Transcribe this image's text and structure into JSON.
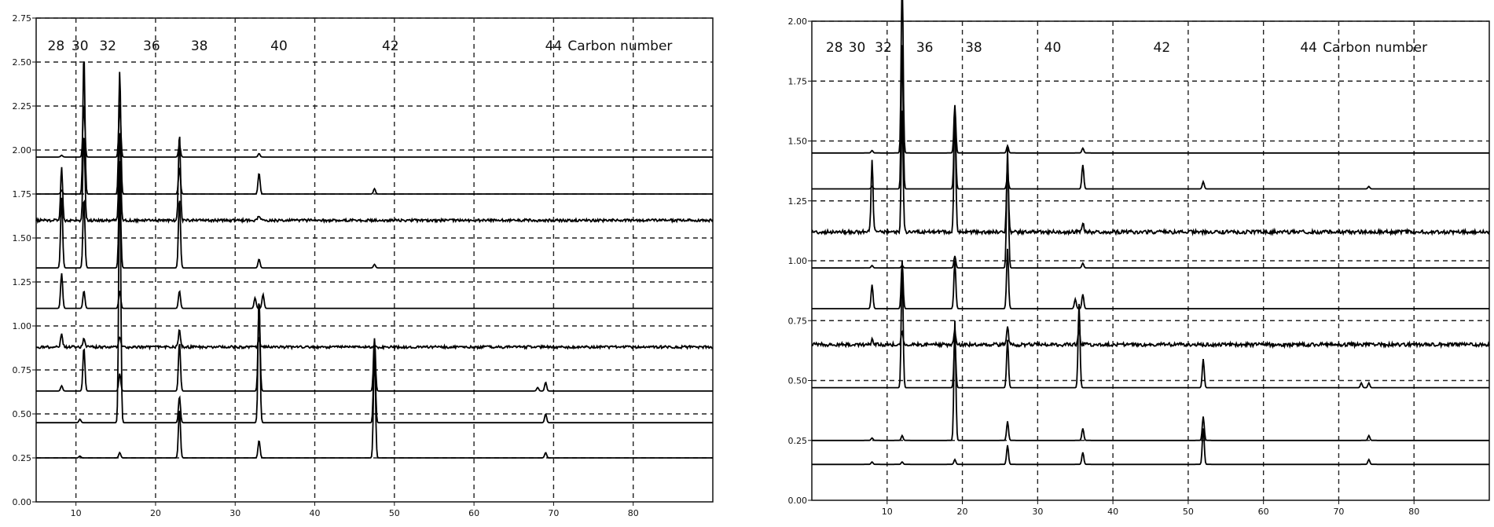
{
  "chart_data": [
    {
      "type": "line",
      "title": "",
      "xlabel": "",
      "ylabel": "",
      "xlim": [
        5,
        90
      ],
      "ylim": [
        0,
        2.75
      ],
      "xticks": [
        "10",
        "20",
        "30",
        "40",
        "50",
        "60",
        "70",
        "80"
      ],
      "yticks": [
        "0.00",
        "0.25",
        "0.50",
        "0.75",
        "1.00",
        "1.25",
        "1.50",
        "1.75",
        "2.00",
        "2.25",
        "2.50",
        "2.75"
      ],
      "grid": "dashed",
      "carbon_number_label": "Carbon number",
      "carbon_numbers": [
        {
          "label": "28",
          "x": 7.5
        },
        {
          "label": "30",
          "x": 10.5
        },
        {
          "label": "32",
          "x": 14.0
        },
        {
          "label": "36",
          "x": 19.5
        },
        {
          "label": "38",
          "x": 25.5
        },
        {
          "label": "40",
          "x": 35.5
        },
        {
          "label": "42",
          "x": 49.5
        },
        {
          "label": "44",
          "x": 70.0
        }
      ],
      "series": [
        {
          "baseline": 0.25,
          "peaks": [
            [
              10.5,
              0.01
            ],
            [
              15.5,
              0.03
            ],
            [
              23.0,
              0.28
            ],
            [
              33.0,
              0.1
            ],
            [
              47.5,
              0.6
            ],
            [
              69.0,
              0.03
            ]
          ]
        },
        {
          "baseline": 0.45,
          "peaks": [
            [
              10.5,
              0.02
            ],
            [
              15.5,
              1.5
            ],
            [
              23.0,
              0.15
            ],
            [
              33.0,
              0.72
            ],
            [
              47.5,
              0.45
            ],
            [
              69.0,
              0.05
            ]
          ]
        },
        {
          "baseline": 0.63,
          "peaks": [
            [
              8.2,
              0.03
            ],
            [
              11.0,
              0.25
            ],
            [
              15.5,
              0.1
            ],
            [
              23.0,
              0.28
            ],
            [
              33.0,
              0.5
            ],
            [
              47.5,
              0.3
            ],
            [
              68.0,
              0.02
            ],
            [
              69.0,
              0.05
            ]
          ]
        },
        {
          "baseline": 0.88,
          "peaks": [
            [
              8.2,
              0.08
            ],
            [
              11.0,
              0.05
            ],
            [
              15.5,
              0.06
            ],
            [
              23.0,
              0.1
            ],
            [
              33.0,
              0.05
            ]
          ],
          "noisy": true
        },
        {
          "baseline": 1.1,
          "peaks": [
            [
              8.2,
              0.2
            ],
            [
              11.0,
              0.1
            ],
            [
              15.5,
              0.1
            ],
            [
              23.0,
              0.1
            ],
            [
              32.5,
              0.06
            ],
            [
              33.5,
              0.08
            ]
          ]
        },
        {
          "baseline": 1.33,
          "peaks": [
            [
              8.2,
              0.4
            ],
            [
              11.0,
              0.4
            ],
            [
              15.5,
              0.5
            ],
            [
              23.0,
              0.4
            ],
            [
              33.0,
              0.05
            ],
            [
              47.5,
              0.02
            ]
          ]
        },
        {
          "baseline": 1.6,
          "peaks": [
            [
              8.2,
              0.3
            ],
            [
              11.0,
              0.5
            ],
            [
              15.5,
              0.5
            ],
            [
              23.0,
              0.5
            ],
            [
              33.0,
              0.03
            ]
          ],
          "noisy": true
        },
        {
          "baseline": 1.75,
          "peaks": [
            [
              8.2,
              0.02
            ],
            [
              11.0,
              0.8
            ],
            [
              15.5,
              0.7
            ],
            [
              23.0,
              0.15
            ],
            [
              33.0,
              0.12
            ],
            [
              47.5,
              0.03
            ]
          ]
        },
        {
          "baseline": 1.96,
          "peaks": [
            [
              8.2,
              0.01
            ],
            [
              11.0,
              0.3
            ],
            [
              15.5,
              0.3
            ],
            [
              23.0,
              0.07
            ],
            [
              33.0,
              0.02
            ]
          ]
        }
      ]
    },
    {
      "type": "line",
      "title": "",
      "xlabel": "",
      "ylabel": "",
      "xlim": [
        0,
        90
      ],
      "ylim": [
        0,
        2.0
      ],
      "xticks": [
        "10",
        "20",
        "30",
        "40",
        "50",
        "60",
        "70",
        "80"
      ],
      "yticks": [
        "0.00",
        "0.25",
        "0.50",
        "0.75",
        "1.00",
        "1.25",
        "1.50",
        "1.75",
        "2.00"
      ],
      "grid": "dashed",
      "carbon_number_label": "Carbon number",
      "carbon_numbers": [
        {
          "label": "28",
          "x": 3.0
        },
        {
          "label": "30",
          "x": 6.0
        },
        {
          "label": "32",
          "x": 9.5
        },
        {
          "label": "36",
          "x": 15.0
        },
        {
          "label": "38",
          "x": 21.5
        },
        {
          "label": "40",
          "x": 32.0
        },
        {
          "label": "42",
          "x": 46.5
        },
        {
          "label": "44",
          "x": 66.0
        }
      ],
      "series": [
        {
          "baseline": 0.15,
          "peaks": [
            [
              8.0,
              0.01
            ],
            [
              12.0,
              0.01
            ],
            [
              19.0,
              0.02
            ],
            [
              26.0,
              0.08
            ],
            [
              36.0,
              0.05
            ],
            [
              52.0,
              0.15
            ],
            [
              74.0,
              0.02
            ]
          ]
        },
        {
          "baseline": 0.25,
          "peaks": [
            [
              8.0,
              0.01
            ],
            [
              12.0,
              0.02
            ],
            [
              19.0,
              0.5
            ],
            [
              26.0,
              0.08
            ],
            [
              36.0,
              0.05
            ],
            [
              52.0,
              0.1
            ],
            [
              74.0,
              0.02
            ]
          ]
        },
        {
          "baseline": 0.47,
          "peaks": [
            [
              12.0,
              0.5
            ],
            [
              19.0,
              0.2
            ],
            [
              26.0,
              0.2
            ],
            [
              35.5,
              0.35
            ],
            [
              52.0,
              0.12
            ],
            [
              73.0,
              0.02
            ],
            [
              74.0,
              0.02
            ]
          ]
        },
        {
          "baseline": 0.65,
          "peaks": [
            [
              8.0,
              0.02
            ],
            [
              12.0,
              0.06
            ],
            [
              19.0,
              0.06
            ],
            [
              26.0,
              0.07
            ],
            [
              35.5,
              0.06
            ]
          ],
          "noisy": true
        },
        {
          "baseline": 0.8,
          "peaks": [
            [
              8.0,
              0.1
            ],
            [
              12.0,
              0.2
            ],
            [
              19.0,
              0.2
            ],
            [
              26.0,
              0.25
            ],
            [
              35.0,
              0.04
            ],
            [
              36.0,
              0.06
            ]
          ]
        },
        {
          "baseline": 0.97,
          "peaks": [
            [
              8.0,
              0.01
            ],
            [
              12.0,
              0.01
            ],
            [
              19.0,
              0.05
            ],
            [
              26.0,
              0.5
            ],
            [
              36.0,
              0.02
            ]
          ]
        },
        {
          "baseline": 1.12,
          "peaks": [
            [
              8.0,
              0.3
            ],
            [
              12.0,
              0.5
            ],
            [
              19.0,
              0.5
            ],
            [
              26.0,
              0.3
            ],
            [
              36.0,
              0.04
            ]
          ],
          "noisy": true
        },
        {
          "baseline": 1.3,
          "peaks": [
            [
              8.0,
              0.01
            ],
            [
              12.0,
              0.6
            ],
            [
              19.0,
              0.3
            ],
            [
              26.0,
              0.05
            ],
            [
              36.0,
              0.1
            ],
            [
              52.0,
              0.03
            ],
            [
              74.0,
              0.01
            ]
          ]
        },
        {
          "baseline": 1.45,
          "peaks": [
            [
              8.0,
              0.01
            ],
            [
              12.0,
              0.75
            ],
            [
              19.0,
              0.2
            ],
            [
              26.0,
              0.03
            ],
            [
              36.0,
              0.02
            ]
          ]
        }
      ]
    }
  ]
}
